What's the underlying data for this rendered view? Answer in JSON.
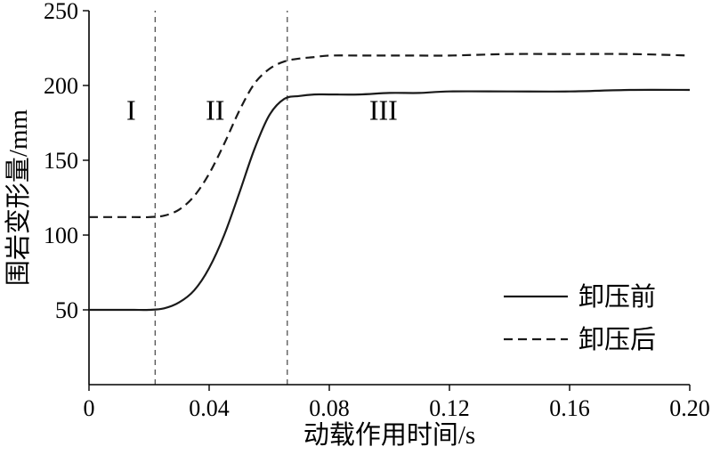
{
  "figure": {
    "background": "#ffffff",
    "axis_color": "#000000",
    "curve_color": "#1a1a1a",
    "vline_color": "#444444"
  },
  "chart_data": {
    "type": "line",
    "title": "",
    "xlabel": "动载作用时间/s",
    "ylabel": "围岩变形量/mm",
    "xlim": [
      0,
      0.2
    ],
    "ylim": [
      0,
      250
    ],
    "xticks": [
      0,
      0.04,
      0.08,
      0.12,
      0.16,
      0.2
    ],
    "xtick_labels": [
      "0",
      "0.04",
      "0.08",
      "0.12",
      "0.16",
      "0.20"
    ],
    "yticks": [
      50,
      100,
      150,
      200,
      250
    ],
    "ytick_labels": [
      "50",
      "100",
      "150",
      "200",
      "250"
    ],
    "grid": false,
    "legend_position": "lower right",
    "series": [
      {
        "name": "卸压前",
        "style": "solid",
        "x": [
          0,
          0.005,
          0.01,
          0.015,
          0.02,
          0.025,
          0.03,
          0.035,
          0.04,
          0.045,
          0.05,
          0.055,
          0.06,
          0.065,
          0.07,
          0.075,
          0.08,
          0.09,
          0.1,
          0.11,
          0.12,
          0.14,
          0.16,
          0.18,
          0.2
        ],
        "y": [
          50,
          50,
          50,
          50,
          50,
          51,
          55,
          63,
          78,
          100,
          128,
          157,
          180,
          191,
          193,
          194,
          194,
          194,
          195,
          195,
          196,
          196,
          196,
          197,
          197
        ]
      },
      {
        "name": "卸压后",
        "style": "dashed",
        "x": [
          0,
          0.005,
          0.01,
          0.015,
          0.02,
          0.025,
          0.03,
          0.035,
          0.04,
          0.045,
          0.05,
          0.055,
          0.06,
          0.065,
          0.07,
          0.075,
          0.08,
          0.09,
          0.1,
          0.11,
          0.12,
          0.14,
          0.16,
          0.18,
          0.2
        ],
        "y": [
          112,
          112,
          112,
          112,
          112,
          113,
          117,
          126,
          141,
          161,
          183,
          201,
          211,
          216,
          218,
          219,
          220,
          220,
          220,
          220,
          220,
          221,
          221,
          221,
          220
        ]
      }
    ],
    "vlines": [
      0.022,
      0.066
    ],
    "annotations": [
      {
        "label": "I",
        "x": 0.014,
        "y": 177
      },
      {
        "label": "II",
        "x": 0.042,
        "y": 177
      },
      {
        "label": "III",
        "x": 0.098,
        "y": 177
      }
    ],
    "legend": {
      "items": [
        {
          "label": "卸压前",
          "style": "solid"
        },
        {
          "label": "卸压后",
          "style": "dashed"
        }
      ]
    }
  }
}
